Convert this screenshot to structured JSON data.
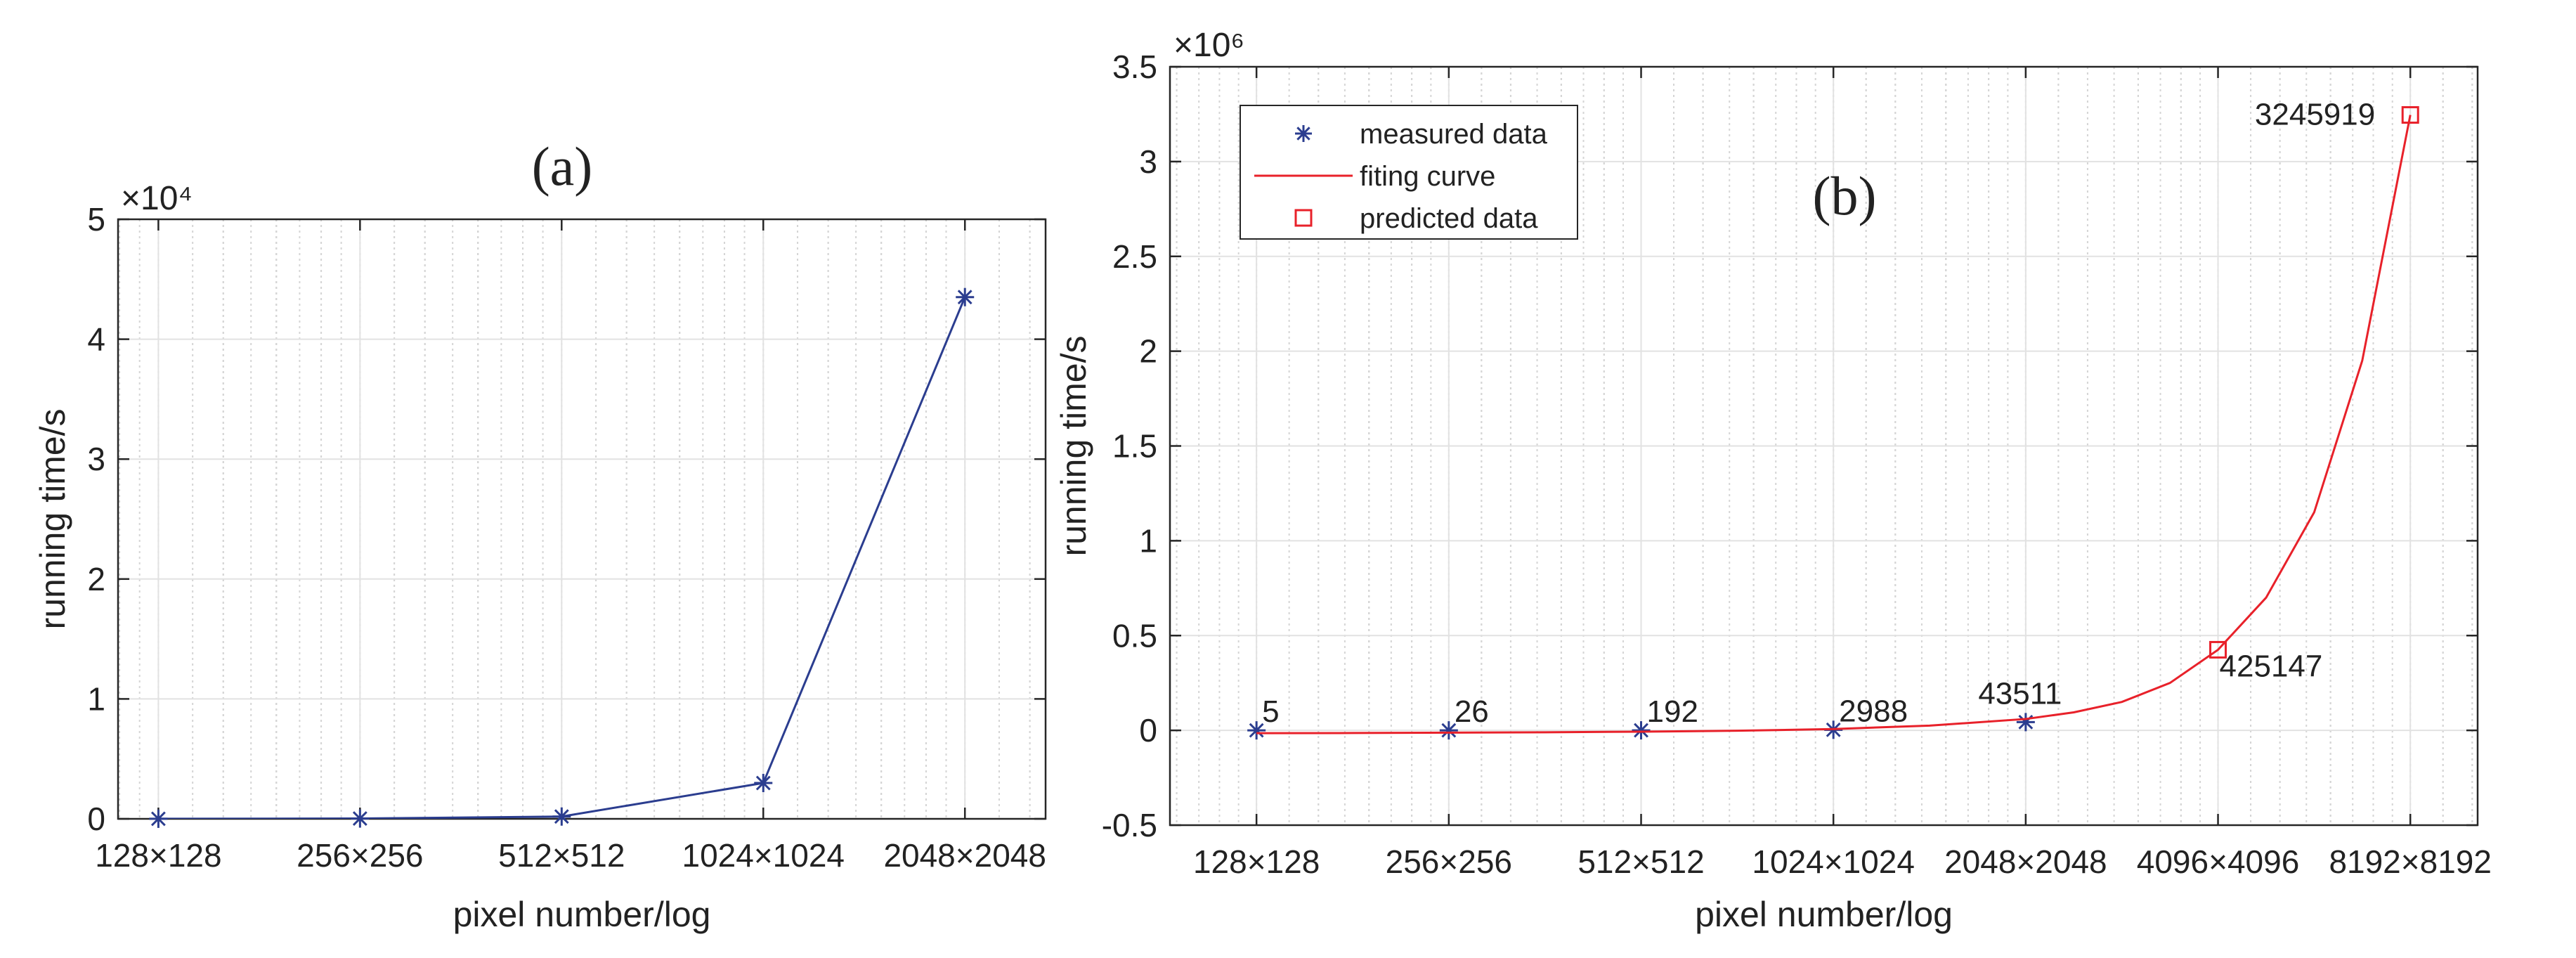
{
  "chart_data": [
    {
      "type": "line",
      "title": "(a)",
      "xlabel": "pixel number/log",
      "ylabel": "running time/s",
      "y_exponent_label": "×10⁴",
      "y_scale_factor": 10000,
      "x_scale": "log2",
      "xlim": [
        6.8,
        11.4
      ],
      "ylim": [
        0,
        50000
      ],
      "y_ticks": [
        0,
        10000,
        20000,
        30000,
        40000,
        50000
      ],
      "y_tick_labels": [
        "0",
        "1",
        "2",
        "3",
        "4",
        "5"
      ],
      "x_ticks": [
        7,
        8,
        9,
        10,
        11
      ],
      "x_tick_labels": [
        "128×128",
        "256×256",
        "512×512",
        "1024×1024",
        "2048×2048"
      ],
      "grid": true,
      "series": [
        {
          "type": "line",
          "marker": "asterisk",
          "color": "#2b3d8f",
          "x": [
            7,
            8,
            9,
            10,
            11
          ],
          "y": [
            5,
            26,
            192,
            2988,
            43511
          ]
        }
      ]
    },
    {
      "type": "line",
      "title": "(b)",
      "xlabel": "pixel number/log",
      "ylabel": "running time/s",
      "y_exponent_label": "×10⁶",
      "y_scale_factor": 1000000,
      "x_scale": "log2",
      "xlim": [
        6.55,
        13.35
      ],
      "ylim": [
        -500000,
        3500000
      ],
      "y_ticks": [
        -500000,
        0,
        500000,
        1000000,
        1500000,
        2000000,
        2500000,
        3000000,
        3500000
      ],
      "y_tick_labels": [
        "-0.5",
        "0",
        "0.5",
        "1",
        "1.5",
        "2",
        "2.5",
        "3",
        "3.5"
      ],
      "x_ticks": [
        7,
        8,
        9,
        10,
        11,
        12,
        13
      ],
      "x_tick_labels": [
        "128×128",
        "256×256",
        "512×512",
        "1024×1024",
        "2048×2048",
        "4096×4096",
        "8192×8192"
      ],
      "grid": true,
      "legend_position": "top-left",
      "series": [
        {
          "name": "measured data",
          "type": "scatter",
          "marker": "asterisk",
          "color": "#2b3d8f",
          "x": [
            7,
            8,
            9,
            10,
            11
          ],
          "y": [
            5,
            26,
            192,
            2988,
            43511
          ],
          "point_labels": [
            "5",
            "26",
            "192",
            "2988",
            "43511"
          ]
        },
        {
          "name": "fiting curve",
          "type": "line",
          "color": "#e8212a",
          "x": [
            7,
            7.5,
            8,
            8.5,
            9,
            9.5,
            10,
            10.5,
            11,
            11.25,
            11.5,
            11.75,
            12,
            12.25,
            12.5,
            12.75,
            13
          ],
          "y": [
            -15000,
            -14000,
            -12000,
            -10000,
            -7000,
            -2000,
            7000,
            25000,
            60000,
            95000,
            150000,
            250000,
            425147,
            700000,
            1150000,
            1950000,
            3245919
          ]
        },
        {
          "name": "predicted data",
          "type": "scatter",
          "marker": "square",
          "color": "#e8212a",
          "x": [
            12,
            13
          ],
          "y": [
            425147,
            3245919
          ],
          "point_labels": [
            "425147",
            "3245919"
          ]
        }
      ]
    }
  ]
}
